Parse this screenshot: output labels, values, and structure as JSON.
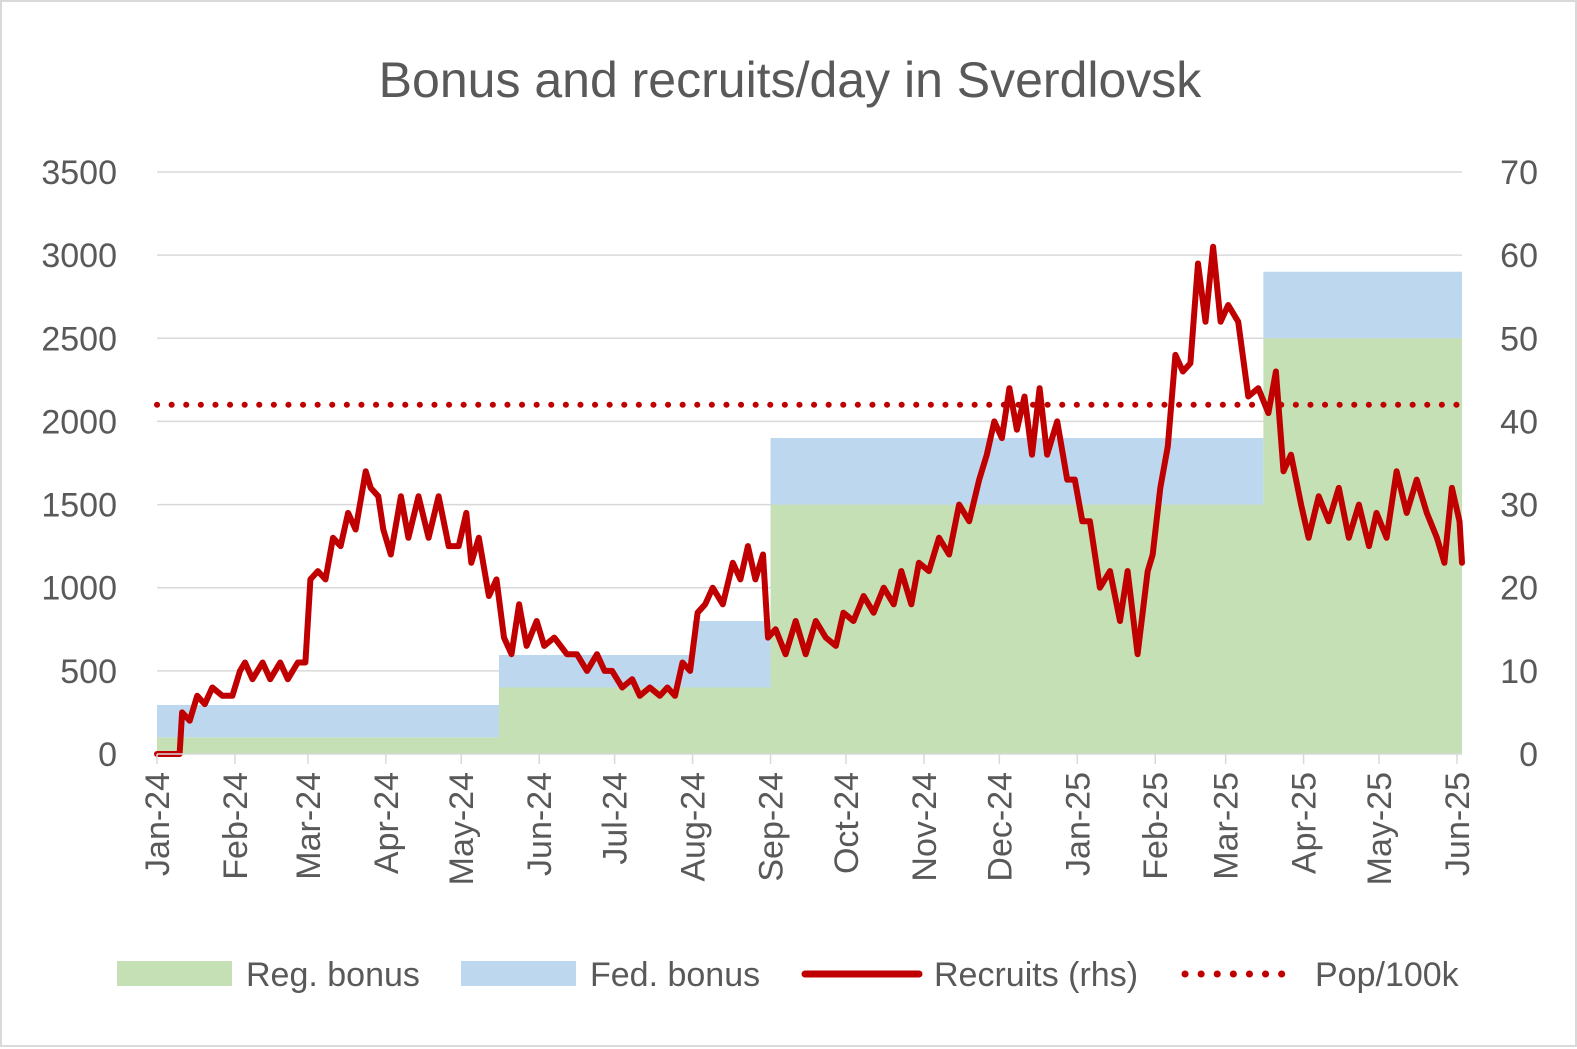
{
  "chart_data": {
    "type": "area",
    "title": "Bonus and recruits/day in Sverdlovsk",
    "x_tick_labels": [
      "Jan-24",
      "Feb-24",
      "Mar-24",
      "Apr-24",
      "May-24",
      "Jun-24",
      "Jul-24",
      "Aug-24",
      "Sep-24",
      "Oct-24",
      "Nov-24",
      "Dec-24",
      "Jan-25",
      "Feb-25",
      "Mar-25",
      "Apr-25",
      "May-25",
      "Jun-25"
    ],
    "x_range": [
      "2024-01-01",
      "2025-06-03"
    ],
    "y_left": {
      "min": 0,
      "max": 3500,
      "step": 500,
      "ticks": [
        "0",
        "500",
        "1000",
        "1500",
        "2000",
        "2500",
        "3000",
        "3500"
      ]
    },
    "y_right": {
      "min": 0,
      "max": 70,
      "step": 10,
      "ticks": [
        "0",
        "10",
        "20",
        "30",
        "40",
        "50",
        "60",
        "70"
      ]
    },
    "grid": true,
    "legend_position": "bottom",
    "series": [
      {
        "name": "Reg. bonus",
        "kind": "stacked-area-step",
        "axis": "left",
        "color": "#c5e0b4",
        "points": [
          [
            "2024-01-01",
            100
          ],
          [
            "2024-05-16",
            400
          ],
          [
            "2024-09-01",
            1500
          ],
          [
            "2025-03-16",
            2500
          ],
          [
            "2025-06-03",
            2500
          ]
        ]
      },
      {
        "name": "Fed. bonus",
        "kind": "stacked-area-step",
        "axis": "left",
        "color": "#bdd7ee",
        "points": [
          [
            "2024-01-01",
            195
          ],
          [
            "2024-05-16",
            195
          ],
          [
            "2024-08-01",
            400
          ],
          [
            "2024-09-01",
            400
          ],
          [
            "2025-03-16",
            400
          ],
          [
            "2025-06-03",
            400
          ]
        ]
      },
      {
        "name": "Recruits (rhs)",
        "kind": "line",
        "axis": "right",
        "color": "#c00000",
        "points": [
          [
            "2024-01-01",
            0
          ],
          [
            "2024-01-05",
            0
          ],
          [
            "2024-01-10",
            0
          ],
          [
            "2024-01-11",
            5
          ],
          [
            "2024-01-14",
            4
          ],
          [
            "2024-01-17",
            7
          ],
          [
            "2024-01-20",
            6
          ],
          [
            "2024-01-23",
            8
          ],
          [
            "2024-01-27",
            7
          ],
          [
            "2024-01-31",
            7
          ],
          [
            "2024-02-03",
            10
          ],
          [
            "2024-02-05",
            11
          ],
          [
            "2024-02-08",
            9
          ],
          [
            "2024-02-12",
            11
          ],
          [
            "2024-02-15",
            9
          ],
          [
            "2024-02-19",
            11
          ],
          [
            "2024-02-22",
            9
          ],
          [
            "2024-02-26",
            11
          ],
          [
            "2024-02-29",
            11
          ],
          [
            "2024-03-02",
            21
          ],
          [
            "2024-03-05",
            22
          ],
          [
            "2024-03-08",
            21
          ],
          [
            "2024-03-11",
            26
          ],
          [
            "2024-03-14",
            25
          ],
          [
            "2024-03-17",
            29
          ],
          [
            "2024-03-20",
            27
          ],
          [
            "2024-03-24",
            34
          ],
          [
            "2024-03-26",
            32
          ],
          [
            "2024-03-29",
            31
          ],
          [
            "2024-03-31",
            27
          ],
          [
            "2024-04-03",
            24
          ],
          [
            "2024-04-07",
            31
          ],
          [
            "2024-04-10",
            26
          ],
          [
            "2024-04-14",
            31
          ],
          [
            "2024-04-18",
            26
          ],
          [
            "2024-04-22",
            31
          ],
          [
            "2024-04-26",
            25
          ],
          [
            "2024-04-30",
            25
          ],
          [
            "2024-05-03",
            29
          ],
          [
            "2024-05-05",
            23
          ],
          [
            "2024-05-08",
            26
          ],
          [
            "2024-05-12",
            19
          ],
          [
            "2024-05-15",
            21
          ],
          [
            "2024-05-18",
            14
          ],
          [
            "2024-05-21",
            12
          ],
          [
            "2024-05-24",
            18
          ],
          [
            "2024-05-27",
            13
          ],
          [
            "2024-05-31",
            16
          ],
          [
            "2024-06-03",
            13
          ],
          [
            "2024-06-07",
            14
          ],
          [
            "2024-06-12",
            12
          ],
          [
            "2024-06-16",
            12
          ],
          [
            "2024-06-20",
            10
          ],
          [
            "2024-06-24",
            12
          ],
          [
            "2024-06-27",
            10
          ],
          [
            "2024-06-30",
            10
          ],
          [
            "2024-07-04",
            8
          ],
          [
            "2024-07-08",
            9
          ],
          [
            "2024-07-11",
            7
          ],
          [
            "2024-07-15",
            8
          ],
          [
            "2024-07-19",
            7
          ],
          [
            "2024-07-22",
            8
          ],
          [
            "2024-07-25",
            7
          ],
          [
            "2024-07-28",
            11
          ],
          [
            "2024-07-31",
            10
          ],
          [
            "2024-08-03",
            17
          ],
          [
            "2024-08-06",
            18
          ],
          [
            "2024-08-09",
            20
          ],
          [
            "2024-08-13",
            18
          ],
          [
            "2024-08-17",
            23
          ],
          [
            "2024-08-20",
            21
          ],
          [
            "2024-08-23",
            25
          ],
          [
            "2024-08-26",
            21
          ],
          [
            "2024-08-29",
            24
          ],
          [
            "2024-08-31",
            14
          ],
          [
            "2024-09-03",
            15
          ],
          [
            "2024-09-07",
            12
          ],
          [
            "2024-09-11",
            16
          ],
          [
            "2024-09-15",
            12
          ],
          [
            "2024-09-19",
            16
          ],
          [
            "2024-09-23",
            14
          ],
          [
            "2024-09-27",
            13
          ],
          [
            "2024-09-30",
            17
          ],
          [
            "2024-10-04",
            16
          ],
          [
            "2024-10-08",
            19
          ],
          [
            "2024-10-12",
            17
          ],
          [
            "2024-10-16",
            20
          ],
          [
            "2024-10-20",
            18
          ],
          [
            "2024-10-23",
            22
          ],
          [
            "2024-10-27",
            18
          ],
          [
            "2024-10-30",
            23
          ],
          [
            "2024-11-03",
            22
          ],
          [
            "2024-11-07",
            26
          ],
          [
            "2024-11-11",
            24
          ],
          [
            "2024-11-15",
            30
          ],
          [
            "2024-11-19",
            28
          ],
          [
            "2024-11-23",
            33
          ],
          [
            "2024-11-26",
            36
          ],
          [
            "2024-11-29",
            40
          ],
          [
            "2024-12-02",
            38
          ],
          [
            "2024-12-05",
            44
          ],
          [
            "2024-12-08",
            39
          ],
          [
            "2024-12-11",
            43
          ],
          [
            "2024-12-14",
            36
          ],
          [
            "2024-12-17",
            44
          ],
          [
            "2024-12-20",
            36
          ],
          [
            "2024-12-24",
            40
          ],
          [
            "2024-12-28",
            33
          ],
          [
            "2024-12-31",
            33
          ],
          [
            "2025-01-03",
            28
          ],
          [
            "2025-01-06",
            28
          ],
          [
            "2025-01-10",
            20
          ],
          [
            "2025-01-14",
            22
          ],
          [
            "2025-01-18",
            16
          ],
          [
            "2025-01-21",
            22
          ],
          [
            "2025-01-25",
            12
          ],
          [
            "2025-01-29",
            22
          ],
          [
            "2025-01-31",
            24
          ],
          [
            "2025-02-03",
            32
          ],
          [
            "2025-02-06",
            37
          ],
          [
            "2025-02-09",
            48
          ],
          [
            "2025-02-12",
            46
          ],
          [
            "2025-02-15",
            47
          ],
          [
            "2025-02-18",
            59
          ],
          [
            "2025-02-21",
            52
          ],
          [
            "2025-02-24",
            61
          ],
          [
            "2025-02-27",
            52
          ],
          [
            "2025-03-02",
            54
          ],
          [
            "2025-03-06",
            52
          ],
          [
            "2025-03-10",
            43
          ],
          [
            "2025-03-14",
            44
          ],
          [
            "2025-03-18",
            41
          ],
          [
            "2025-03-21",
            46
          ],
          [
            "2025-03-24",
            34
          ],
          [
            "2025-03-27",
            36
          ],
          [
            "2025-03-31",
            30
          ],
          [
            "2025-04-03",
            26
          ],
          [
            "2025-04-07",
            31
          ],
          [
            "2025-04-11",
            28
          ],
          [
            "2025-04-15",
            32
          ],
          [
            "2025-04-19",
            26
          ],
          [
            "2025-04-23",
            30
          ],
          [
            "2025-04-27",
            25
          ],
          [
            "2025-04-30",
            29
          ],
          [
            "2025-05-04",
            26
          ],
          [
            "2025-05-08",
            34
          ],
          [
            "2025-05-12",
            29
          ],
          [
            "2025-05-16",
            33
          ],
          [
            "2025-05-20",
            29
          ],
          [
            "2025-05-24",
            26
          ],
          [
            "2025-05-27",
            23
          ],
          [
            "2025-05-30",
            32
          ],
          [
            "2025-06-02",
            28
          ],
          [
            "2025-06-03",
            23
          ]
        ]
      },
      {
        "name": "Pop/100k",
        "kind": "dotted-line",
        "axis": "right",
        "color": "#c00000",
        "value": 42
      }
    ]
  }
}
